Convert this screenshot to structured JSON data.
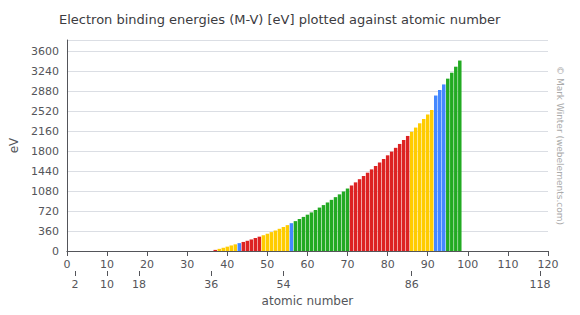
{
  "chart_data": {
    "type": "bar",
    "title": "Electron binding energies (M-V) [eV] plotted against atomic number",
    "xlabel": "atomic number",
    "ylabel": "eV",
    "annotations": [
      "© Mark Winter (webelements.com)"
    ],
    "x": [
      37,
      38,
      39,
      40,
      41,
      42,
      43,
      44,
      45,
      46,
      47,
      48,
      49,
      50,
      51,
      52,
      53,
      54,
      55,
      56,
      57,
      58,
      59,
      60,
      61,
      62,
      63,
      64,
      65,
      66,
      67,
      68,
      69,
      70,
      71,
      72,
      73,
      74,
      75,
      76,
      77,
      78,
      79,
      80,
      81,
      82,
      83,
      84,
      85,
      86,
      87,
      88,
      89,
      90,
      91,
      92,
      93,
      94,
      95,
      96,
      97,
      98
    ],
    "values": [
      20.0,
      38.9,
      58.0,
      78.3,
      100.0,
      120.0,
      142.0,
      163.0,
      184.0,
      208.0,
      232.0,
      258.0,
      284.0,
      311.0,
      340.0,
      369.0,
      400.0,
      432.0,
      466.0,
      501.0,
      538.0,
      576.0,
      614.0,
      654.0,
      695.0,
      738.0,
      782.0,
      827.0,
      874.0,
      921.0,
      970.0,
      1020.0,
      1072.0,
      1125.0,
      1180.0,
      1236.0,
      1293.0,
      1351.0,
      1410.0,
      1470.0,
      1531.0,
      1594.0,
      1657.0,
      1723.0,
      1790.0,
      1858.0,
      1928.0,
      1999.0,
      2072.0,
      2147.0,
      2223.0,
      2300.0,
      2378.0,
      2458.0,
      2539.0,
      2800.0,
      2900.0,
      3000.0,
      3104.0,
      3211.0,
      3319.0,
      3430.0
    ],
    "colors": [
      "#dd2222",
      "#ffcc00",
      "#ffcc00",
      "#ffcc00",
      "#ffcc00",
      "#ffcc00",
      "#4488ff",
      "#dd2222",
      "#dd2222",
      "#dd2222",
      "#dd2222",
      "#dd2222",
      "#ffcc00",
      "#ffcc00",
      "#ffcc00",
      "#ffcc00",
      "#ffcc00",
      "#ffcc00",
      "#ffcc00",
      "#4488ff",
      "#22aa22",
      "#22aa22",
      "#22aa22",
      "#22aa22",
      "#22aa22",
      "#22aa22",
      "#22aa22",
      "#22aa22",
      "#22aa22",
      "#22aa22",
      "#22aa22",
      "#22aa22",
      "#22aa22",
      "#22aa22",
      "#dd2222",
      "#dd2222",
      "#dd2222",
      "#dd2222",
      "#dd2222",
      "#dd2222",
      "#dd2222",
      "#dd2222",
      "#dd2222",
      "#dd2222",
      "#dd2222",
      "#dd2222",
      "#dd2222",
      "#dd2222",
      "#dd2222",
      "#ffcc00",
      "#ffcc00",
      "#ffcc00",
      "#ffcc00",
      "#ffcc00",
      "#ffcc00",
      "#4488ff",
      "#4488ff",
      "#4488ff",
      "#22aa22",
      "#22aa22",
      "#22aa22",
      "#22aa22"
    ],
    "xlim": [
      0,
      120
    ],
    "xticks": [
      0,
      10,
      20,
      30,
      40,
      50,
      60,
      70,
      80,
      90,
      100,
      110,
      120
    ],
    "x2lim": [
      0,
      120
    ],
    "x2ticks": [
      2,
      10,
      18,
      36,
      54,
      86,
      118
    ],
    "ylim": [
      0,
      3800
    ],
    "yticks": [
      0,
      360,
      720,
      1080,
      1440,
      1800,
      2160,
      2520,
      2880,
      3240,
      3600
    ],
    "grid": true
  }
}
